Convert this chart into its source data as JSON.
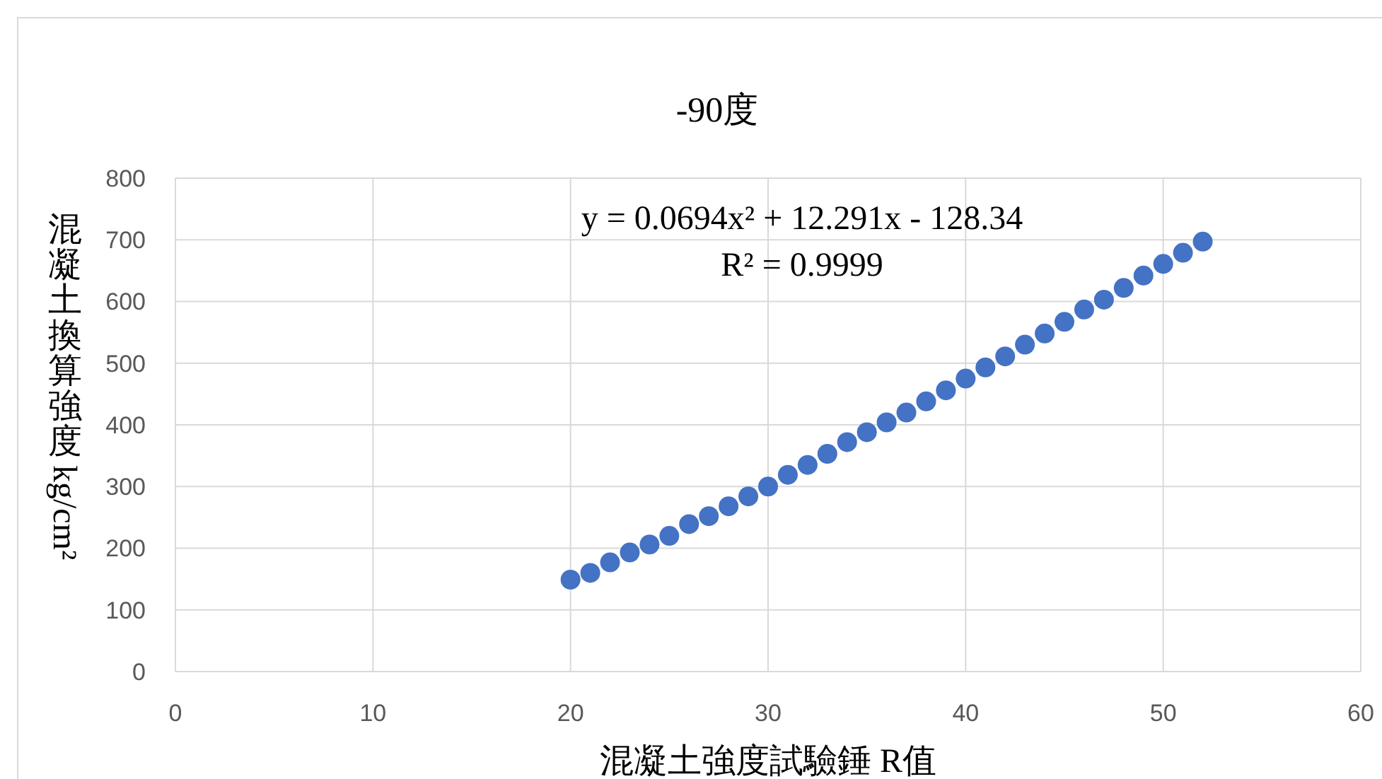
{
  "chart_data": {
    "type": "scatter",
    "title": "-90度",
    "xlabel": "混凝土強度試驗錘 R值",
    "ylabel": "混凝土換算強度 kg/cm²",
    "annotations": [
      "y = 0.0694x² + 12.291x - 128.34",
      "R² = 0.9999"
    ],
    "x": [
      20,
      21,
      22,
      23,
      24,
      25,
      26,
      27,
      28,
      29,
      30,
      31,
      32,
      33,
      34,
      35,
      36,
      37,
      38,
      39,
      40,
      41,
      42,
      43,
      44,
      45,
      46,
      47,
      48,
      49,
      50,
      51,
      52
    ],
    "series": [
      {
        "color": "#4472c4",
        "values": [
          149,
          160,
          177,
          193,
          206,
          220,
          239,
          252,
          268,
          284,
          300,
          319,
          335,
          353,
          372,
          388,
          404,
          420,
          438,
          456,
          475,
          493,
          511,
          530,
          548,
          567,
          587,
          603,
          622,
          642,
          661,
          679,
          697
        ]
      }
    ],
    "xlim": [
      0,
      60
    ],
    "xticks": [
      0,
      10,
      20,
      30,
      40,
      50,
      60
    ],
    "ylim": [
      0,
      800
    ],
    "yticks": [
      0,
      100,
      200,
      300,
      400,
      500,
      600,
      700,
      800
    ],
    "grid": true,
    "marker": "circle"
  }
}
